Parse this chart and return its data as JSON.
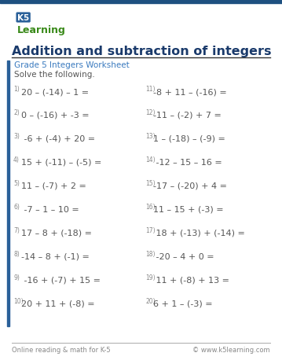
{
  "title": "Addition and subtraction of integers",
  "subtitle": "Grade 5 Integers Worksheet",
  "instruction": "Solve the following.",
  "bg_color": "#ffffff",
  "left_border_color": "#2a6099",
  "title_color": "#1a3a6b",
  "subtitle_color": "#3a7abf",
  "text_color": "#555555",
  "num_color": "#888888",
  "footer_line_color": "#aaaaaa",
  "footer_text_color": "#888888",
  "logo_k5_color": "#2a6099",
  "logo_learning_color": "#3a8a1a",
  "left_problems": [
    {
      "num": "1)",
      "expr": "20 – (-14) – 1 ="
    },
    {
      "num": "2)",
      "expr": "0 – (-16) + -3 ="
    },
    {
      "num": "3)",
      "expr": " -6 + (-4) + 20 ="
    },
    {
      "num": "4)",
      "expr": "15 + (-11) – (-5) ="
    },
    {
      "num": "5)",
      "expr": "11 – (-7) + 2 ="
    },
    {
      "num": "6)",
      "expr": " -7 – 1 – 10 ="
    },
    {
      "num": "7)",
      "expr": "17 – 8 + (-18) ="
    },
    {
      "num": "8)",
      "expr": "-14 – 8 + (-1) ="
    },
    {
      "num": "9)",
      "expr": " -16 + (-7) + 15 ="
    },
    {
      "num": "10)",
      "expr": "20 + 11 + (-8) ="
    }
  ],
  "right_problems": [
    {
      "num": "11)",
      "expr": "-8 + 11 – (-16) ="
    },
    {
      "num": "12)",
      "expr": "-11 – (-2) + 7 ="
    },
    {
      "num": "13)",
      "expr": "1 – (-18) – (-9) ="
    },
    {
      "num": "14)",
      "expr": " -12 – 15 – 16 ="
    },
    {
      "num": "15)",
      "expr": "-17 – (-20) + 4 ="
    },
    {
      "num": "16)",
      "expr": "11 – 15 + (-3) ="
    },
    {
      "num": "17)",
      "expr": " 18 + (-13) + (-14) ="
    },
    {
      "num": "18)",
      "expr": " -20 – 4 + 0 ="
    },
    {
      "num": "19)",
      "expr": " 11 + (-8) + 13 ="
    },
    {
      "num": "20)",
      "expr": "6 + 1 – (-3) ="
    }
  ],
  "footer_left": "Online reading & math for K-5",
  "footer_right": "© www.k5learning.com"
}
